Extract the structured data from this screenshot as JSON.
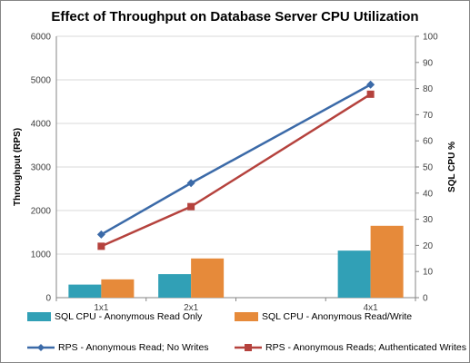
{
  "chart_data": {
    "type": "bar+line",
    "title": "Effect of Throughput on Database Server CPU Utilization",
    "categories": [
      "1x1",
      "2x1",
      "",
      "4x1"
    ],
    "y_left": {
      "label": "Throughput (RPS)",
      "min": 0,
      "max": 6000,
      "step": 1000
    },
    "y_right": {
      "label": "SQL CPU %",
      "min": 0,
      "max": 100,
      "step": 10
    },
    "bar_series": [
      {
        "name": "SQL CPU - Anonymous Read Only",
        "color": "#31a0b6",
        "axis": "right",
        "values": [
          5,
          9,
          null,
          18
        ]
      },
      {
        "name": "SQL CPU - Anonymous Read/Write",
        "color": "#e68a3a",
        "axis": "right",
        "values": [
          7,
          15,
          null,
          27.5
        ]
      }
    ],
    "line_series": [
      {
        "name": "RPS - Anonymous Read; No Writes",
        "color": "#3b6aa8",
        "marker": "diamond",
        "axis": "left",
        "values": [
          1450,
          2630,
          null,
          4890
        ]
      },
      {
        "name": "RPS - Anonymous Reads; Authenticated Writes",
        "color": "#b5423d",
        "marker": "square",
        "axis": "left",
        "values": [
          1180,
          2090,
          null,
          4670
        ]
      }
    ],
    "grid": "horizontal",
    "legend_position": "bottom"
  }
}
